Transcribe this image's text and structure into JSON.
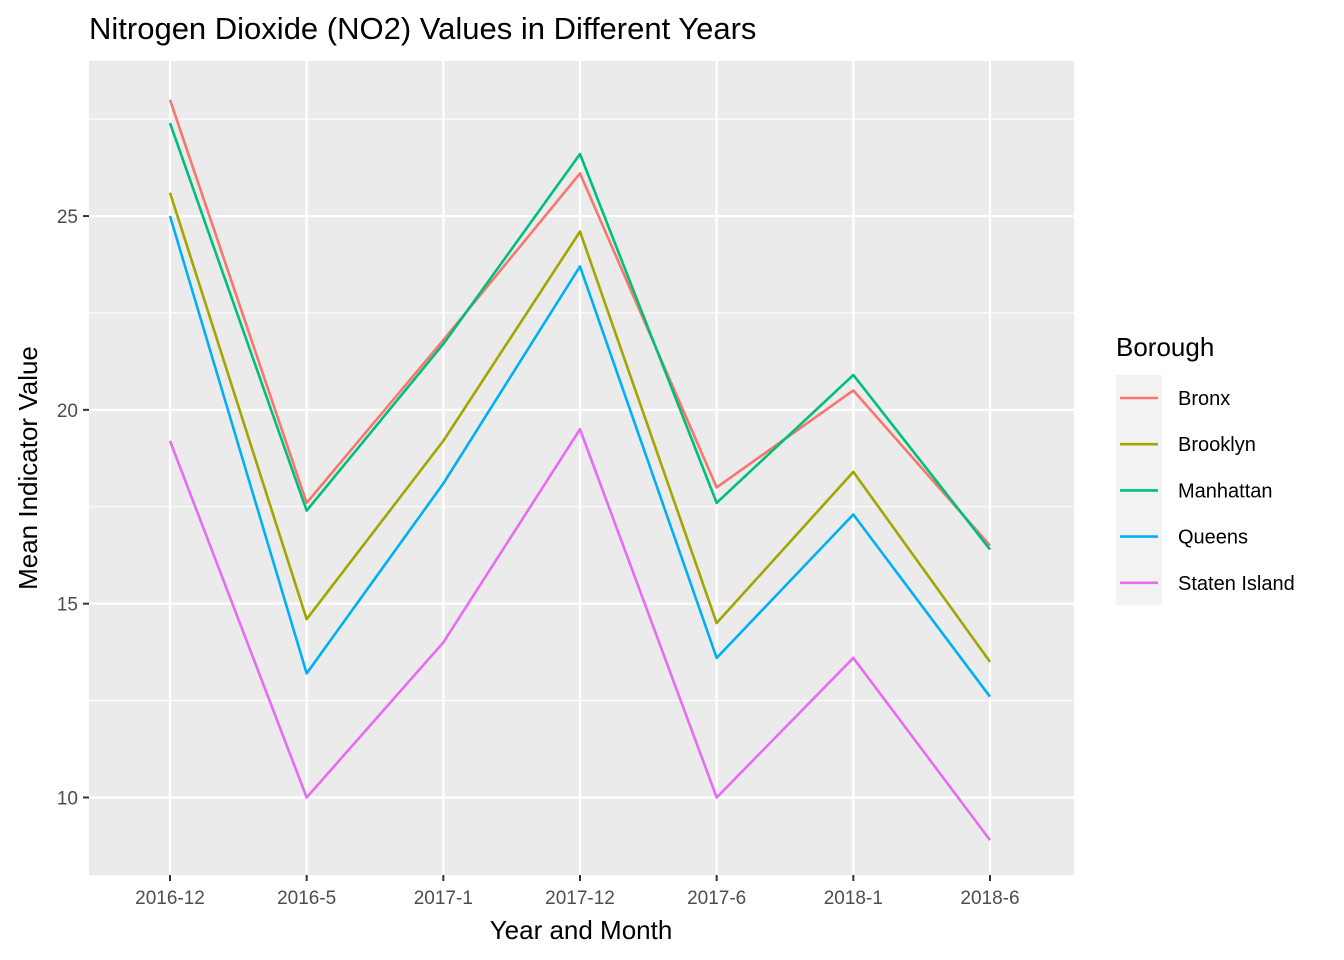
{
  "chart_data": {
    "type": "line",
    "title": "Nitrogen Dioxide (NO2) Values in Different Years",
    "xlabel": "Year and Month",
    "ylabel": "Mean Indicator Value",
    "categories": [
      "2016-12",
      "2016-5",
      "2017-1",
      "2017-12",
      "2017-6",
      "2018-1",
      "2018-6"
    ],
    "y_ticks": [
      10,
      15,
      20,
      25
    ],
    "ylim": [
      8,
      29
    ],
    "grid": true,
    "legend": {
      "title": "Borough",
      "placement": "right"
    },
    "series": [
      {
        "name": "Bronx",
        "color": "#F8766D",
        "values": [
          28.0,
          17.6,
          21.8,
          26.1,
          18.0,
          20.5,
          16.5
        ]
      },
      {
        "name": "Brooklyn",
        "color": "#A3A500",
        "values": [
          25.6,
          14.6,
          19.2,
          24.6,
          14.5,
          18.4,
          13.5
        ]
      },
      {
        "name": "Manhattan",
        "color": "#00BF7D",
        "values": [
          27.4,
          17.4,
          21.7,
          26.6,
          17.6,
          20.9,
          16.4
        ]
      },
      {
        "name": "Queens",
        "color": "#00B0F6",
        "values": [
          25.0,
          13.2,
          18.1,
          23.7,
          13.6,
          17.3,
          12.6
        ]
      },
      {
        "name": "Staten Island",
        "color": "#E76BF3",
        "values": [
          19.2,
          10.0,
          14.0,
          19.5,
          10.0,
          13.6,
          8.9
        ]
      }
    ]
  }
}
